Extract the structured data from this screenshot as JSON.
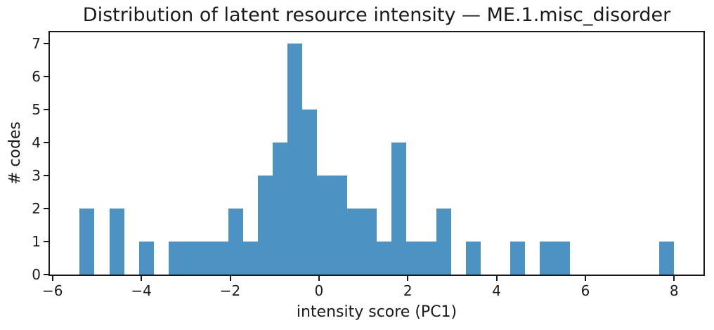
{
  "chart_data": {
    "type": "bar",
    "subtype": "histogram",
    "title": "Distribution of latent resource intensity — ME.1.misc_disorder",
    "xlabel": "intensity score (PC1)",
    "ylabel": "# codes",
    "bar_color": "#4c92c3",
    "axis_color": "#1a1a1a",
    "grid": "off",
    "legend": "none",
    "bin_start": -5.39,
    "bin_width": 0.3345,
    "counts": [
      2,
      0,
      2,
      0,
      1,
      0,
      1,
      1,
      1,
      1,
      2,
      1,
      3,
      4,
      7,
      5,
      3,
      3,
      2,
      2,
      1,
      4,
      1,
      1,
      2,
      0,
      1,
      0,
      0,
      1,
      0,
      1,
      1,
      0,
      0,
      0,
      0,
      0,
      0,
      1
    ],
    "xlim": [
      -6.06,
      8.66
    ],
    "ylim": [
      0,
      7.35
    ],
    "xticks": [
      {
        "value": -6,
        "label": "−6"
      },
      {
        "value": -4,
        "label": "−4"
      },
      {
        "value": -2,
        "label": "−2"
      },
      {
        "value": 0,
        "label": "0"
      },
      {
        "value": 2,
        "label": "2"
      },
      {
        "value": 4,
        "label": "4"
      },
      {
        "value": 6,
        "label": "6"
      },
      {
        "value": 8,
        "label": "8"
      }
    ],
    "yticks": [
      {
        "value": 0,
        "label": "0"
      },
      {
        "value": 1,
        "label": "1"
      },
      {
        "value": 2,
        "label": "2"
      },
      {
        "value": 3,
        "label": "3"
      },
      {
        "value": 4,
        "label": "4"
      },
      {
        "value": 5,
        "label": "5"
      },
      {
        "value": 6,
        "label": "6"
      },
      {
        "value": 7,
        "label": "7"
      }
    ]
  }
}
